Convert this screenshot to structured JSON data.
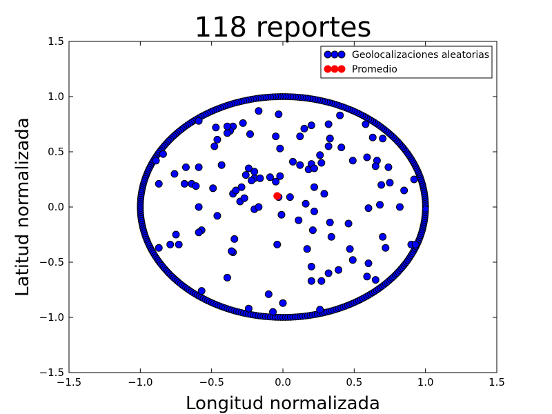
{
  "chart_data": {
    "type": "scatter",
    "title": "118 reportes",
    "xlabel": "Longitud normalizada",
    "ylabel": "Latitud normalizada",
    "xlim": [
      -1.5,
      1.5
    ],
    "ylim": [
      -1.5,
      1.5
    ],
    "xticks": [
      "−1.5",
      "−1.0",
      "−0.5",
      "0.0",
      "0.5",
      "1.0",
      "1.5"
    ],
    "yticks": [
      "−1.5",
      "−1.0",
      "−0.5",
      "0.0",
      "0.5",
      "1.0",
      "1.5"
    ],
    "xtick_values": [
      -1.5,
      -1.0,
      -0.5,
      0.0,
      0.5,
      1.0,
      1.5
    ],
    "ytick_values": [
      -1.5,
      -1.0,
      -0.5,
      0.0,
      0.5,
      1.0,
      1.5
    ],
    "grid": false,
    "legend_position": "top-right",
    "boundary_circle": {
      "center": [
        0,
        0
      ],
      "radius": 1.0,
      "color": "#0000ff",
      "edge_color": "#000000"
    },
    "series": [
      {
        "name": "Geolocalizaciones aleatorias",
        "color": "#0000ff",
        "edge_color": "#000000",
        "x": [
          -0.59,
          -0.47,
          -0.35,
          -0.28,
          -0.37,
          -0.17,
          -0.03,
          -0.05,
          -0.48,
          -0.39,
          -0.84,
          -0.89,
          -0.87,
          -0.64,
          -0.69,
          -0.76,
          -0.68,
          -0.24,
          -0.61,
          -0.43,
          -0.2,
          -0.22,
          -0.29,
          -0.49,
          -0.16,
          -0.05,
          -0.02,
          -0.35,
          0.33,
          0.12,
          0.15,
          0.2,
          0.26,
          0.27,
          0.32,
          0.4,
          0.58,
          0.59,
          0.63,
          0.66,
          0.65,
          0.7,
          0.75,
          0.69,
          0.74,
          0.85,
          0.92,
          0.6,
          0.68,
          0.82,
          -0.59,
          -0.46,
          -0.01,
          0.05,
          0.11,
          0.16,
          0.22,
          0.21,
          0.33,
          0.34,
          -0.87,
          -0.75,
          -0.79,
          -0.73,
          -0.57,
          -0.59,
          -0.35,
          -0.34,
          -0.04,
          0.17,
          0.2,
          0.47,
          0.46,
          0.49,
          0.6,
          0.7,
          0.72,
          0.9,
          0.93,
          -0.57,
          -0.39,
          -0.24,
          -0.1,
          -0.07,
          0.0,
          0.2,
          0.27,
          0.26,
          0.32,
          0.39,
          0.59,
          0.65,
          0.22,
          0.32,
          -0.26,
          -0.33,
          -0.46,
          -0.59,
          -0.39,
          -0.23,
          -0.36,
          -0.3,
          -0.2,
          -0.2,
          -0.27,
          -0.17,
          -0.09,
          -0.02,
          -0.03,
          0.07,
          0.12,
          0.18,
          0.2,
          0.22,
          0.29,
          0.33,
          0.41,
          0.49
        ],
        "y": [
          0.78,
          0.72,
          0.73,
          0.76,
          0.69,
          0.87,
          0.84,
          0.64,
          0.55,
          0.67,
          0.48,
          0.42,
          0.21,
          0.21,
          0.21,
          0.3,
          0.36,
          0.35,
          0.19,
          0.38,
          0.26,
          0.24,
          0.18,
          0.17,
          0.26,
          0.23,
          0.53,
          0.12,
          0.62,
          0.64,
          0.71,
          0.74,
          0.47,
          0.4,
          0.75,
          0.83,
          0.75,
          0.45,
          0.63,
          0.42,
          0.37,
          0.62,
          0.22,
          0.2,
          0.36,
          0.15,
          0.25,
          -0.01,
          0.02,
          0.0,
          0.0,
          -0.08,
          -0.07,
          0.09,
          -0.12,
          0.03,
          -0.04,
          -0.21,
          -0.14,
          -0.27,
          -0.37,
          -0.25,
          -0.34,
          -0.34,
          -0.21,
          -0.23,
          -0.41,
          -0.29,
          -0.34,
          -0.38,
          -0.54,
          -0.38,
          -0.15,
          -0.48,
          -0.51,
          -0.27,
          -0.37,
          -0.34,
          -0.34,
          -0.76,
          -0.64,
          -0.92,
          -0.79,
          -0.95,
          -0.87,
          -0.67,
          -0.67,
          -0.93,
          -0.6,
          -0.57,
          -0.63,
          -0.66,
          0.18,
          0.55,
          0.29,
          0.15,
          0.61,
          0.36,
          0.73,
          0.66,
          -0.4,
          0.05,
          -0.02,
          0.32,
          0.08,
          0.0,
          0.27,
          0.28,
          0.09,
          0.41,
          0.38,
          0.34,
          0.39,
          0.35,
          0.12,
          0.62,
          0.54,
          0.42
        ]
      },
      {
        "name": "Promedio",
        "color": "#ff0000",
        "edge_color": "#ff0000",
        "x": [
          -0.04
        ],
        "y": [
          0.1
        ]
      }
    ]
  }
}
